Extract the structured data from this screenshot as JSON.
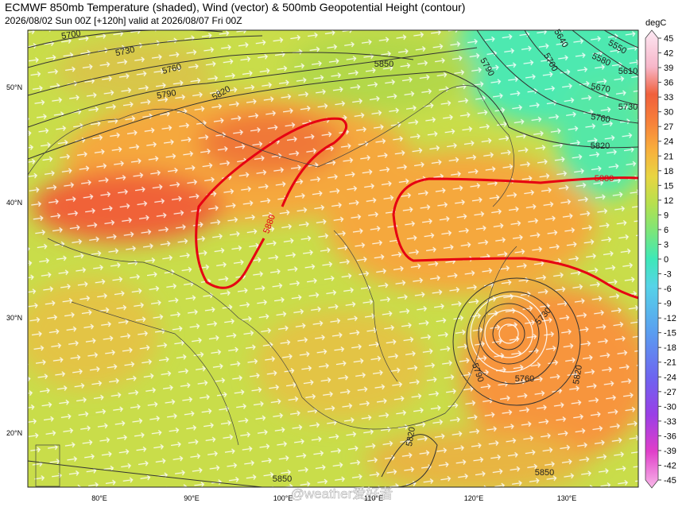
{
  "header": {
    "title": "ECMWF 850mb Temperature (shaded), Wind (vector) & 500mb Geopotential Height (contour)",
    "subtitle": "2026/08/02 Sun 00Z [+120h] valid at 2026/08/07 Fri 00Z"
  },
  "colorbar": {
    "unit": "degC",
    "ticks": [
      45,
      42,
      39,
      36,
      33,
      30,
      27,
      24,
      21,
      18,
      15,
      12,
      9,
      6,
      3,
      0,
      -3,
      -6,
      -9,
      -12,
      -15,
      -18,
      -21,
      -24,
      -27,
      -30,
      -33,
      -36,
      -39,
      -42,
      -45
    ]
  },
  "latitude_labels": [
    "50°N",
    "40°N",
    "30°N",
    "20°N"
  ],
  "longitude_labels": [
    "80°E",
    "90°E",
    "100°E",
    "110°E",
    "120°E",
    "130°E"
  ],
  "contour_labels": [
    "5700",
    "5730",
    "5760",
    "5790",
    "5820",
    "5850",
    "5880",
    "5880",
    "5640",
    "5550",
    "5580",
    "5610",
    "5700",
    "5790",
    "5670",
    "5730",
    "5760",
    "5820",
    "5730",
    "5760",
    "5790",
    "5820",
    "5820",
    "5850",
    "5850"
  ],
  "watermark": "@weather爱好者"
}
